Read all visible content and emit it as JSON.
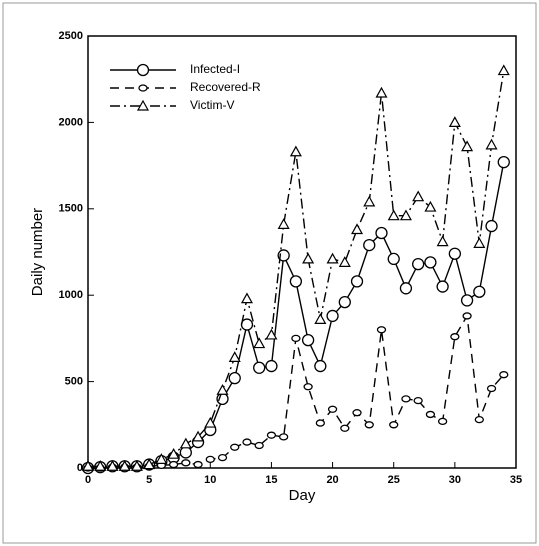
{
  "chart_data": {
    "type": "line",
    "xlabel": "Day",
    "ylabel": "Daily number",
    "x": [
      0,
      1,
      2,
      3,
      4,
      5,
      6,
      7,
      8,
      9,
      10,
      11,
      12,
      13,
      14,
      15,
      16,
      17,
      18,
      19,
      20,
      21,
      22,
      23,
      24,
      25,
      26,
      27,
      28,
      29,
      30,
      31,
      32,
      33,
      34
    ],
    "series": [
      {
        "name": "Infected-I",
        "color": "#000000",
        "dash": "solid",
        "marker": "circle",
        "values": [
          0,
          5,
          10,
          10,
          10,
          20,
          40,
          60,
          90,
          150,
          220,
          400,
          520,
          830,
          580,
          590,
          1230,
          1080,
          740,
          590,
          880,
          960,
          1080,
          1290,
          1360,
          1210,
          1040,
          1180,
          1190,
          1050,
          1240,
          970,
          1020,
          1400,
          1770
        ]
      },
      {
        "name": "Recovered-R",
        "color": "#000000",
        "dash": "dashed",
        "marker": "oval",
        "values": [
          0,
          0,
          5,
          5,
          5,
          10,
          15,
          20,
          30,
          20,
          50,
          60,
          120,
          150,
          130,
          190,
          180,
          750,
          470,
          260,
          340,
          230,
          320,
          250,
          800,
          250,
          400,
          390,
          310,
          270,
          760,
          880,
          280,
          460,
          540
        ]
      },
      {
        "name": "Victim-V",
        "color": "#000000",
        "dash": "dashdot",
        "marker": "triangle",
        "values": [
          10,
          10,
          10,
          10,
          10,
          20,
          50,
          80,
          140,
          180,
          260,
          450,
          640,
          980,
          720,
          770,
          1410,
          1830,
          1210,
          860,
          1210,
          1190,
          1380,
          1540,
          2170,
          1460,
          1460,
          1570,
          1510,
          1310,
          2000,
          1860,
          1300,
          1870,
          2300
        ]
      }
    ],
    "xlim": [
      0,
      35
    ],
    "xticks": [
      0,
      5,
      10,
      15,
      20,
      25,
      30,
      35
    ],
    "ylim": [
      0,
      2500
    ],
    "yticks": [
      0,
      500,
      1000,
      1500,
      2000,
      2500
    ],
    "legend": "upper-left"
  }
}
